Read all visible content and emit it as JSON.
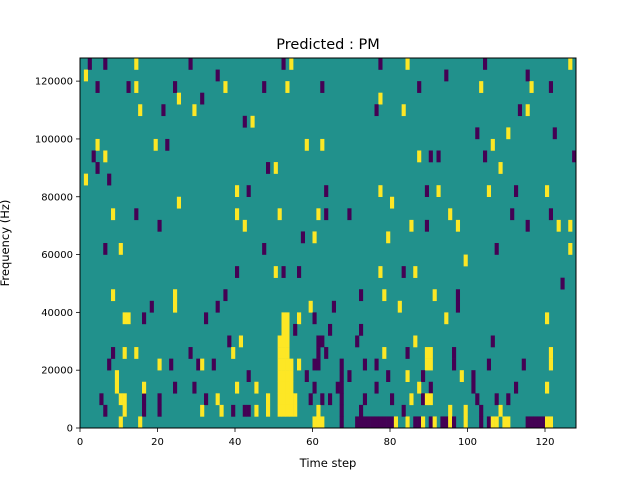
{
  "chart_data": {
    "type": "heatmap",
    "title": "Predicted : PM",
    "xlabel": "Time step",
    "ylabel": "Frequency (Hz)",
    "xlim": [
      0,
      128
    ],
    "ylim": [
      0,
      128000
    ],
    "xticks": [
      0,
      20,
      40,
      60,
      80,
      100,
      120
    ],
    "yticks": [
      0,
      20000,
      40000,
      60000,
      80000,
      100000,
      120000
    ],
    "xtick_labels": [
      "0",
      "20",
      "40",
      "60",
      "80",
      "100",
      "120"
    ],
    "ytick_labels": [
      "0",
      "20000",
      "40000",
      "60000",
      "80000",
      "100000",
      "120000"
    ],
    "grid": false,
    "legend": "none",
    "colors": {
      "background": "#21918c",
      "high": "#fde725",
      "low": "#440154"
    },
    "background_level": 0,
    "cell_height_hz": 4000,
    "cells": [
      [
        2,
        124000,
        -1
      ],
      [
        6,
        124000,
        -1
      ],
      [
        14,
        124000,
        1
      ],
      [
        28,
        124000,
        -1
      ],
      [
        52,
        124000,
        -1
      ],
      [
        54,
        124000,
        1
      ],
      [
        77,
        124000,
        -1
      ],
      [
        84,
        124000,
        1
      ],
      [
        104,
        124000,
        -1
      ],
      [
        126,
        124000,
        1
      ],
      [
        1,
        120000,
        1
      ],
      [
        35,
        120000,
        -1
      ],
      [
        94,
        120000,
        -1
      ],
      [
        115,
        120000,
        -1
      ],
      [
        4,
        116000,
        -1
      ],
      [
        12,
        116000,
        -1
      ],
      [
        14,
        116000,
        1
      ],
      [
        24,
        116000,
        -1
      ],
      [
        37,
        116000,
        1
      ],
      [
        47,
        116000,
        -1
      ],
      [
        53,
        116000,
        1
      ],
      [
        62,
        116000,
        -1
      ],
      [
        87,
        116000,
        -1
      ],
      [
        103,
        116000,
        1
      ],
      [
        116,
        116000,
        1
      ],
      [
        121,
        116000,
        -1
      ],
      [
        25,
        112000,
        1
      ],
      [
        31,
        112000,
        -1
      ],
      [
        77,
        112000,
        1
      ],
      [
        15,
        108000,
        1
      ],
      [
        21,
        108000,
        -1
      ],
      [
        29,
        108000,
        1
      ],
      [
        76,
        108000,
        -1
      ],
      [
        83,
        108000,
        1
      ],
      [
        113,
        108000,
        -1
      ],
      [
        115,
        108000,
        1
      ],
      [
        42,
        104000,
        -1
      ],
      [
        44,
        104000,
        1
      ],
      [
        102,
        100000,
        -1
      ],
      [
        110,
        100000,
        1
      ],
      [
        122,
        100000,
        -1
      ],
      [
        4,
        96000,
        1
      ],
      [
        19,
        96000,
        1
      ],
      [
        22,
        96000,
        -1
      ],
      [
        58,
        96000,
        1
      ],
      [
        62,
        96000,
        1
      ],
      [
        106,
        96000,
        1
      ],
      [
        3,
        92000,
        -1
      ],
      [
        6,
        92000,
        1
      ],
      [
        87,
        92000,
        1
      ],
      [
        90,
        92000,
        -1
      ],
      [
        92,
        92000,
        -1
      ],
      [
        104,
        92000,
        -1
      ],
      [
        127,
        92000,
        -1
      ],
      [
        4,
        88000,
        -1
      ],
      [
        48,
        88000,
        -1
      ],
      [
        50,
        88000,
        1
      ],
      [
        108,
        88000,
        1
      ],
      [
        1,
        84000,
        1
      ],
      [
        7,
        84000,
        -1
      ],
      [
        40,
        80000,
        1
      ],
      [
        43,
        80000,
        -1
      ],
      [
        63,
        80000,
        -1
      ],
      [
        77,
        80000,
        1
      ],
      [
        89,
        80000,
        -1
      ],
      [
        92,
        80000,
        1
      ],
      [
        105,
        80000,
        1
      ],
      [
        112,
        80000,
        -1
      ],
      [
        120,
        80000,
        1
      ],
      [
        25,
        76000,
        1
      ],
      [
        80,
        76000,
        1
      ],
      [
        8,
        72000,
        1
      ],
      [
        14,
        72000,
        -1
      ],
      [
        40,
        72000,
        1
      ],
      [
        51,
        72000,
        1
      ],
      [
        61,
        72000,
        1
      ],
      [
        63,
        72000,
        -1
      ],
      [
        69,
        72000,
        -1
      ],
      [
        95,
        72000,
        1
      ],
      [
        111,
        72000,
        -1
      ],
      [
        121,
        72000,
        -1
      ],
      [
        20,
        68000,
        -1
      ],
      [
        42,
        68000,
        1
      ],
      [
        85,
        68000,
        1
      ],
      [
        89,
        68000,
        -1
      ],
      [
        97,
        68000,
        1
      ],
      [
        115,
        68000,
        -1
      ],
      [
        123,
        68000,
        1
      ],
      [
        126,
        68000,
        1
      ],
      [
        57,
        64000,
        -1
      ],
      [
        60,
        64000,
        1
      ],
      [
        79,
        64000,
        1
      ],
      [
        6,
        60000,
        -1
      ],
      [
        10,
        60000,
        1
      ],
      [
        47,
        60000,
        -1
      ],
      [
        107,
        60000,
        -1
      ],
      [
        126,
        60000,
        1
      ],
      [
        99,
        56000,
        1
      ],
      [
        40,
        52000,
        -1
      ],
      [
        50,
        52000,
        1
      ],
      [
        52,
        52000,
        -1
      ],
      [
        56,
        52000,
        -1
      ],
      [
        77,
        52000,
        1
      ],
      [
        83,
        52000,
        -1
      ],
      [
        86,
        52000,
        1
      ],
      [
        124,
        48000,
        -1
      ],
      [
        8,
        44000,
        1
      ],
      [
        24,
        44000,
        1
      ],
      [
        37,
        44000,
        -1
      ],
      [
        72,
        44000,
        -1
      ],
      [
        78,
        44000,
        1
      ],
      [
        91,
        44000,
        1
      ],
      [
        97,
        44000,
        -1
      ],
      [
        18,
        40000,
        -1
      ],
      [
        24,
        40000,
        1
      ],
      [
        35,
        40000,
        -1
      ],
      [
        59,
        40000,
        1
      ],
      [
        65,
        40000,
        -1
      ],
      [
        82,
        40000,
        1
      ],
      [
        97,
        40000,
        -1
      ],
      [
        11,
        36000,
        1
      ],
      [
        12,
        36000,
        1
      ],
      [
        16,
        36000,
        -1
      ],
      [
        32,
        36000,
        -1
      ],
      [
        52,
        36000,
        1
      ],
      [
        53,
        36000,
        1
      ],
      [
        56,
        36000,
        1
      ],
      [
        60,
        36000,
        -1
      ],
      [
        94,
        36000,
        1
      ],
      [
        120,
        36000,
        1
      ],
      [
        52,
        32000,
        1
      ],
      [
        53,
        32000,
        1
      ],
      [
        55,
        32000,
        -1
      ],
      [
        64,
        32000,
        -1
      ],
      [
        72,
        32000,
        -1
      ],
      [
        38,
        28000,
        -1
      ],
      [
        41,
        28000,
        1
      ],
      [
        51,
        28000,
        1
      ],
      [
        52,
        28000,
        1
      ],
      [
        53,
        28000,
        1
      ],
      [
        61,
        28000,
        -1
      ],
      [
        62,
        28000,
        -1
      ],
      [
        71,
        28000,
        -1
      ],
      [
        86,
        28000,
        1
      ],
      [
        106,
        28000,
        -1
      ],
      [
        8,
        24000,
        -1
      ],
      [
        11,
        24000,
        1
      ],
      [
        14,
        24000,
        1
      ],
      [
        28,
        24000,
        -1
      ],
      [
        39,
        24000,
        1
      ],
      [
        51,
        24000,
        1
      ],
      [
        52,
        24000,
        1
      ],
      [
        53,
        24000,
        1
      ],
      [
        61,
        24000,
        -1
      ],
      [
        63,
        24000,
        -1
      ],
      [
        78,
        24000,
        1
      ],
      [
        84,
        24000,
        -1
      ],
      [
        89,
        24000,
        1
      ],
      [
        90,
        24000,
        1
      ],
      [
        96,
        24000,
        -1
      ],
      [
        121,
        24000,
        1
      ],
      [
        7,
        20000,
        -1
      ],
      [
        20,
        20000,
        1
      ],
      [
        23,
        20000,
        -1
      ],
      [
        30,
        20000,
        -1
      ],
      [
        31,
        20000,
        1
      ],
      [
        34,
        20000,
        -1
      ],
      [
        51,
        20000,
        1
      ],
      [
        52,
        20000,
        1
      ],
      [
        53,
        20000,
        1
      ],
      [
        54,
        20000,
        1
      ],
      [
        56,
        20000,
        1
      ],
      [
        60,
        20000,
        -1
      ],
      [
        61,
        20000,
        -1
      ],
      [
        67,
        20000,
        -1
      ],
      [
        76,
        20000,
        -1
      ],
      [
        89,
        20000,
        1
      ],
      [
        90,
        20000,
        1
      ],
      [
        96,
        20000,
        -1
      ],
      [
        105,
        20000,
        -1
      ],
      [
        114,
        20000,
        -1
      ],
      [
        121,
        20000,
        1
      ],
      [
        51,
        16000,
        1
      ],
      [
        52,
        16000,
        1
      ],
      [
        53,
        16000,
        1
      ],
      [
        54,
        16000,
        1
      ],
      [
        58,
        16000,
        -1
      ],
      [
        67,
        16000,
        -1
      ],
      [
        84,
        16000,
        1
      ],
      [
        88,
        16000,
        -1
      ],
      [
        98,
        16000,
        1
      ],
      [
        9,
        12000,
        1
      ],
      [
        24,
        12000,
        -1
      ],
      [
        29,
        12000,
        -1
      ],
      [
        40,
        12000,
        1
      ],
      [
        45,
        12000,
        1
      ],
      [
        51,
        12000,
        1
      ],
      [
        52,
        12000,
        1
      ],
      [
        53,
        12000,
        1
      ],
      [
        54,
        12000,
        1
      ],
      [
        60,
        12000,
        -1
      ],
      [
        67,
        12000,
        -1
      ],
      [
        76,
        12000,
        -1
      ],
      [
        90,
        12000,
        -1
      ],
      [
        101,
        12000,
        -1
      ],
      [
        112,
        12000,
        -1
      ],
      [
        120,
        12000,
        1
      ],
      [
        5,
        8000,
        -1
      ],
      [
        10,
        8000,
        1
      ],
      [
        11,
        8000,
        1
      ],
      [
        16,
        8000,
        -1
      ],
      [
        20,
        8000,
        -1
      ],
      [
        32,
        8000,
        -1
      ],
      [
        35,
        8000,
        1
      ],
      [
        48,
        8000,
        1
      ],
      [
        51,
        8000,
        1
      ],
      [
        52,
        8000,
        1
      ],
      [
        53,
        8000,
        1
      ],
      [
        54,
        8000,
        1
      ],
      [
        55,
        8000,
        1
      ],
      [
        59,
        8000,
        -1
      ],
      [
        62,
        8000,
        -1
      ],
      [
        67,
        8000,
        -1
      ],
      [
        73,
        8000,
        -1
      ],
      [
        80,
        8000,
        -1
      ],
      [
        85,
        8000,
        1
      ],
      [
        88,
        8000,
        -1
      ],
      [
        89,
        8000,
        1
      ],
      [
        90,
        8000,
        1
      ],
      [
        102,
        8000,
        -1
      ],
      [
        107,
        8000,
        -1
      ],
      [
        110,
        8000,
        -1
      ],
      [
        6,
        4000,
        -1
      ],
      [
        11,
        4000,
        1
      ],
      [
        16,
        4000,
        -1
      ],
      [
        20,
        4000,
        -1
      ],
      [
        31,
        4000,
        1
      ],
      [
        36,
        4000,
        1
      ],
      [
        39,
        4000,
        -1
      ],
      [
        42,
        4000,
        -1
      ],
      [
        43,
        4000,
        -1
      ],
      [
        45,
        4000,
        1
      ],
      [
        48,
        4000,
        1
      ],
      [
        51,
        4000,
        1
      ],
      [
        52,
        4000,
        1
      ],
      [
        53,
        4000,
        1
      ],
      [
        54,
        4000,
        1
      ],
      [
        55,
        4000,
        1
      ],
      [
        67,
        4000,
        -1
      ],
      [
        72,
        4000,
        -1
      ],
      [
        83,
        4000,
        -1
      ],
      [
        95,
        4000,
        1
      ],
      [
        99,
        4000,
        1
      ],
      [
        103,
        4000,
        -1
      ],
      [
        108,
        4000,
        1
      ],
      [
        10,
        0,
        1
      ],
      [
        15,
        0,
        1
      ],
      [
        60,
        0,
        1
      ],
      [
        61,
        0,
        1
      ],
      [
        62,
        0,
        1
      ],
      [
        67,
        0,
        -1
      ],
      [
        71,
        0,
        -1
      ],
      [
        72,
        0,
        -1
      ],
      [
        73,
        0,
        -1
      ],
      [
        74,
        0,
        -1
      ],
      [
        75,
        0,
        -1
      ],
      [
        76,
        0,
        -1
      ],
      [
        77,
        0,
        -1
      ],
      [
        78,
        0,
        -1
      ],
      [
        79,
        0,
        -1
      ],
      [
        80,
        0,
        -1
      ],
      [
        81,
        0,
        1
      ],
      [
        84,
        0,
        1
      ],
      [
        86,
        0,
        -1
      ],
      [
        87,
        0,
        -1
      ],
      [
        88,
        0,
        1
      ],
      [
        90,
        0,
        -1
      ],
      [
        91,
        0,
        1
      ],
      [
        93,
        0,
        -1
      ],
      [
        94,
        0,
        -1
      ],
      [
        95,
        0,
        1
      ],
      [
        96,
        0,
        -1
      ],
      [
        99,
        0,
        1
      ],
      [
        103,
        0,
        -1
      ],
      [
        105,
        0,
        -1
      ],
      [
        106,
        0,
        1
      ],
      [
        107,
        0,
        1
      ],
      [
        109,
        0,
        1
      ],
      [
        110,
        0,
        1
      ],
      [
        115,
        0,
        -1
      ],
      [
        116,
        0,
        -1
      ],
      [
        117,
        0,
        -1
      ],
      [
        118,
        0,
        -1
      ],
      [
        119,
        0,
        -1
      ],
      [
        120,
        0,
        1
      ],
      [
        121,
        0,
        1
      ],
      [
        9,
        16000,
        1
      ],
      [
        16,
        12000,
        1
      ],
      [
        43,
        16000,
        -1
      ],
      [
        61,
        4000,
        1
      ],
      [
        64,
        8000,
        -1
      ],
      [
        66,
        12000,
        -1
      ],
      [
        69,
        16000,
        -1
      ],
      [
        73,
        20000,
        -1
      ],
      [
        79,
        16000,
        -1
      ],
      [
        87,
        12000,
        1
      ],
      [
        101,
        16000,
        -1
      ]
    ]
  }
}
